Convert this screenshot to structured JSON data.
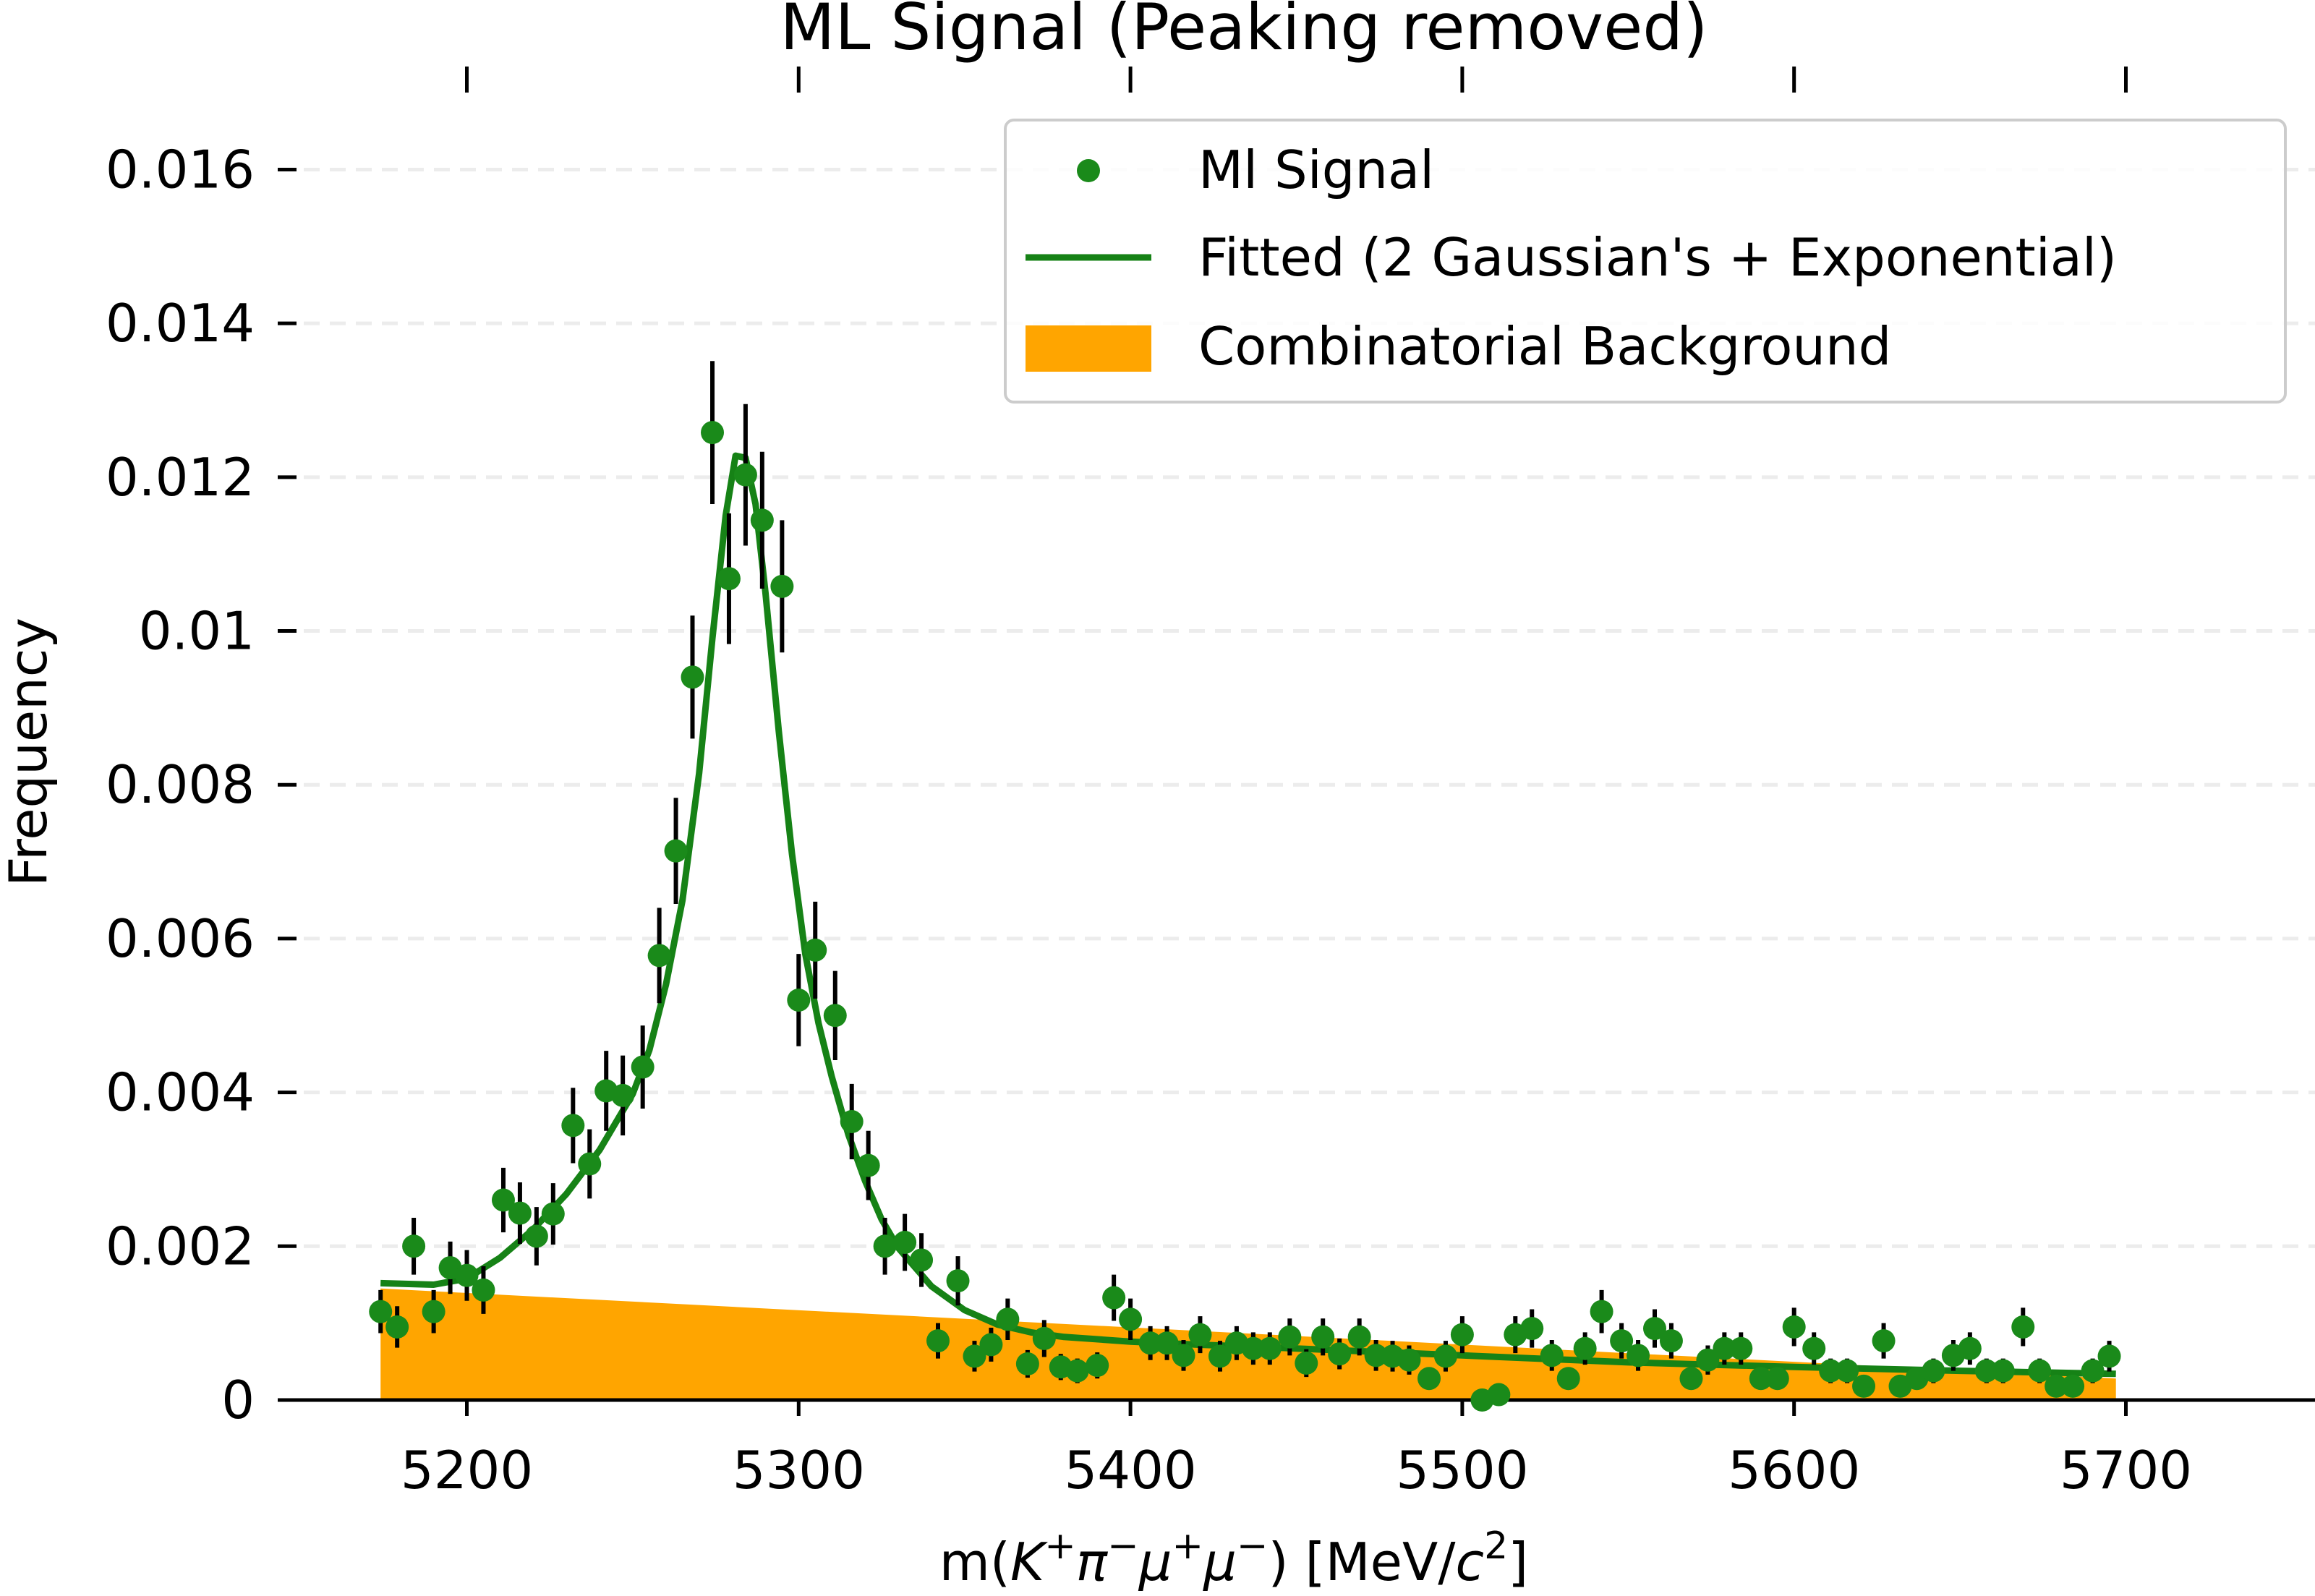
{
  "chart_data": {
    "type": "scatter",
    "title": "ML Signal (Peaking removed)",
    "xlabel": "m(K⁺π⁻μ⁺μ⁻) [MeV/c²]",
    "ylabel": "Frequency",
    "xlim": [
      5143,
      5757
    ],
    "ylim": [
      0,
      0.0167
    ],
    "xticks": [
      5200,
      5300,
      5400,
      5500,
      5600,
      5700
    ],
    "yticks": [
      0,
      0.002,
      0.004,
      0.006,
      0.008,
      0.01,
      0.012,
      0.014,
      0.016
    ],
    "ytick_labels": [
      "0",
      "0.002",
      "0.004",
      "0.006",
      "0.008",
      "0.01",
      "0.012",
      "0.014",
      "0.016"
    ],
    "grid": "y-dashed",
    "legend_position": "top-right",
    "colors": {
      "signal": "#1a8a1a",
      "fit": "#168216",
      "background": "#ffa500",
      "errorbar": "#000000"
    },
    "series": [
      {
        "name": "Ml Signal",
        "kind": "points-with-errorbars",
        "x": [
          5174,
          5179,
          5184,
          5190,
          5195,
          5200,
          5205,
          5211,
          5216,
          5221,
          5226,
          5232,
          5237,
          5242,
          5247,
          5253,
          5258,
          5263,
          5268,
          5274,
          5279,
          5284,
          5289,
          5295,
          5300,
          5305,
          5311,
          5316,
          5321,
          5326,
          5332,
          5337,
          5342,
          5348,
          5353,
          5358,
          5363,
          5369,
          5374,
          5379,
          5384,
          5390,
          5395,
          5400,
          5406,
          5411,
          5416,
          5421,
          5427,
          5432,
          5437,
          5442,
          5448,
          5453,
          5458,
          5463,
          5469,
          5474,
          5479,
          5484,
          5490,
          5495,
          5500,
          5506,
          5511,
          5516,
          5521,
          5527,
          5532,
          5537,
          5542,
          5548,
          5553,
          5558,
          5563,
          5569,
          5574,
          5579,
          5584,
          5590,
          5595,
          5600,
          5606,
          5611,
          5616,
          5621,
          5627,
          5632,
          5637,
          5642,
          5648,
          5653,
          5658,
          5663,
          5669,
          5674,
          5679,
          5684,
          5690,
          5695
        ],
        "y": [
          0.00115,
          0.00095,
          0.002,
          0.00115,
          0.00172,
          0.00162,
          0.00143,
          0.0026,
          0.00243,
          0.00213,
          0.00242,
          0.00357,
          0.00307,
          0.00402,
          0.00396,
          0.00433,
          0.00578,
          0.00714,
          0.0094,
          0.01258,
          0.01068,
          0.01203,
          0.01144,
          0.01058,
          0.0052,
          0.00585,
          0.005,
          0.00362,
          0.00305,
          0.002,
          0.00205,
          0.00182,
          0.00077,
          0.00155,
          0.00057,
          0.00072,
          0.00105,
          0.00047,
          0.0008,
          0.00043,
          0.00038,
          0.00045,
          0.00133,
          0.00105,
          0.00074,
          0.00074,
          0.00058,
          0.00085,
          0.00057,
          0.00074,
          0.00067,
          0.00067,
          0.00082,
          0.00048,
          0.00082,
          0.0006,
          0.00082,
          0.00058,
          0.00057,
          0.00052,
          0.00028,
          0.00057,
          0.00085,
          0.0,
          7e-05,
          0.00085,
          0.00093,
          0.00058,
          0.00028,
          0.00067,
          0.00115,
          0.00077,
          0.00058,
          0.00093,
          0.00077,
          0.00028,
          0.00052,
          0.00067,
          0.00067,
          0.00028,
          0.00028,
          0.00095,
          0.00067,
          0.00038,
          0.00038,
          0.00018,
          0.00077,
          0.00018,
          0.00028,
          0.00038,
          0.00058,
          0.00067,
          0.00038,
          0.00038,
          0.00095,
          0.00038,
          0.00018,
          0.00018,
          0.00038,
          0.00057
        ],
        "yerr": [
          0.00028,
          0.00027,
          0.00037,
          0.00028,
          0.00034,
          0.00033,
          0.00031,
          0.00042,
          0.0004,
          0.00038,
          0.0004,
          0.00049,
          0.00045,
          0.00052,
          0.00052,
          0.00054,
          0.00062,
          0.00069,
          0.0008,
          0.00093,
          0.00085,
          0.00092,
          0.00089,
          0.00086,
          0.0006,
          0.00063,
          0.00058,
          0.00049,
          0.00045,
          0.00037,
          0.00037,
          0.00035,
          0.00023,
          0.00032,
          0.0002,
          0.00022,
          0.00027,
          0.00018,
          0.00024,
          0.00017,
          0.00016,
          0.00017,
          0.0003,
          0.00027,
          0.00022,
          0.00022,
          0.0002,
          0.00024,
          0.0002,
          0.00022,
          0.00021,
          0.00021,
          0.00024,
          0.00018,
          0.00024,
          0.0002,
          0.00024,
          0.0002,
          0.0002,
          0.00019,
          0.00014,
          0.0002,
          0.00024,
          4e-05,
          8e-05,
          0.00024,
          0.00025,
          0.0002,
          0.00014,
          0.00021,
          0.00028,
          0.00023,
          0.0002,
          0.00025,
          0.00023,
          0.00014,
          0.00019,
          0.00021,
          0.00021,
          0.00014,
          0.00014,
          0.00025,
          0.00021,
          0.00016,
          0.00016,
          0.00011,
          0.00023,
          0.00011,
          0.00014,
          0.00016,
          0.0002,
          0.00021,
          0.00016,
          0.00016,
          0.00025,
          0.00016,
          0.00011,
          0.00011,
          0.00016,
          0.0002
        ]
      },
      {
        "name": "Fitted (2 Gaussian's + Exponential)",
        "kind": "line",
        "x": [
          5174,
          5190,
          5200,
          5210,
          5220,
          5230,
          5240,
          5250,
          5255,
          5260,
          5265,
          5270,
          5274,
          5278,
          5281,
          5284,
          5287,
          5290,
          5294,
          5298,
          5302,
          5306,
          5310,
          5315,
          5320,
          5325,
          5330,
          5340,
          5350,
          5360,
          5370,
          5380,
          5400,
          5420,
          5450,
          5500,
          5550,
          5600,
          5650,
          5697
        ],
        "y": [
          0.00152,
          0.0015,
          0.00158,
          0.00185,
          0.00222,
          0.00268,
          0.00325,
          0.00398,
          0.00455,
          0.0054,
          0.0065,
          0.00815,
          0.0099,
          0.0115,
          0.01228,
          0.01225,
          0.01165,
          0.0105,
          0.0087,
          0.0071,
          0.0058,
          0.0049,
          0.0042,
          0.00345,
          0.00285,
          0.00235,
          0.00198,
          0.00148,
          0.00117,
          0.00098,
          0.00088,
          0.00082,
          0.00076,
          0.00072,
          0.00067,
          0.00058,
          0.00049,
          0.00043,
          0.00038,
          0.00034
        ]
      },
      {
        "name": "Combinatorial Background",
        "kind": "area",
        "x": [
          5174,
          5697
        ],
        "y": [
          0.00145,
          0.00028
        ]
      }
    ]
  }
}
